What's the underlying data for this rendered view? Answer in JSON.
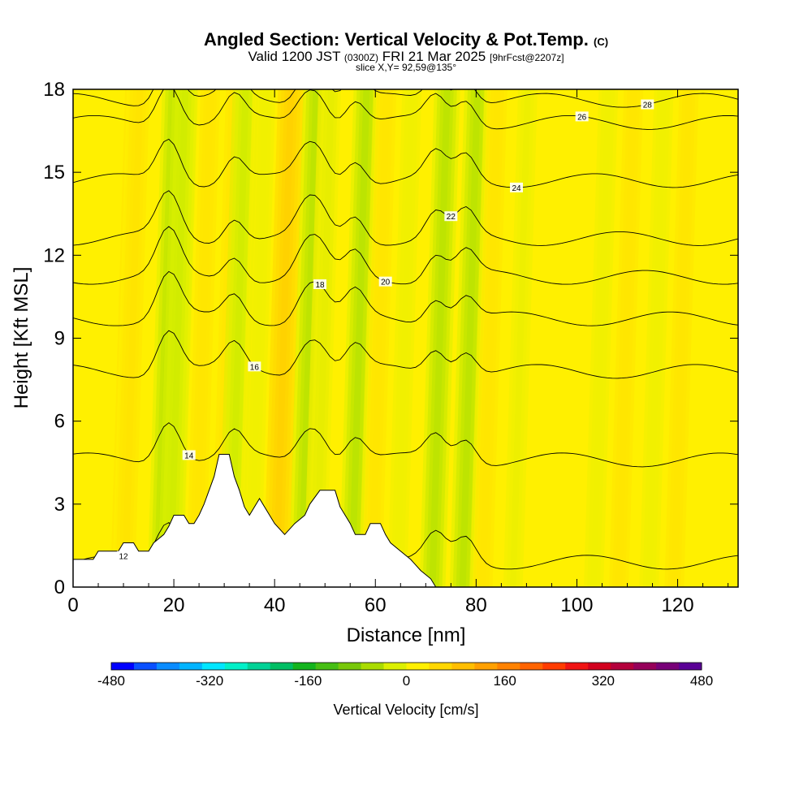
{
  "header": {
    "title": "Angled Section: Vertical Velocity & Pot.Temp.",
    "title_mark": "(C)",
    "valid_prefix": "Valid 1200 JST",
    "valid_utc": "(0300Z)",
    "valid_date": "FRI 21 Mar 2025",
    "forecast": "[9hrFcst@2207z]",
    "slice": "slice X,Y= 92,59@135°"
  },
  "chart_data": {
    "type": "heatmap",
    "xlabel": "Distance [nm]",
    "ylabel": "Height [Kft MSL]",
    "xlim": [
      0,
      132
    ],
    "ylim": [
      0,
      18
    ],
    "x_ticks": [
      0,
      20,
      40,
      60,
      80,
      100,
      120
    ],
    "y_ticks": [
      0,
      3,
      6,
      9,
      12,
      15,
      18
    ],
    "x_tick_labels": [
      "0",
      "20",
      "40",
      "60",
      "80",
      "100",
      "120"
    ],
    "y_tick_labels": [
      "0",
      "3",
      "6",
      "9",
      "12",
      "15",
      "18"
    ],
    "colorbar": {
      "title": "Vertical Velocity [cm/s]",
      "min": -480,
      "max": 480,
      "tick_values": [
        -480,
        -320,
        -160,
        0,
        160,
        320,
        480
      ],
      "tick_labels": [
        "-480",
        "-320",
        "-160",
        "0",
        "160",
        "320",
        "480"
      ],
      "colors": [
        "#0000ff",
        "#0a50ff",
        "#0a8cff",
        "#00b4ff",
        "#00e6ff",
        "#00f0c8",
        "#00d296",
        "#00be64",
        "#14b41e",
        "#46be14",
        "#78c80a",
        "#aadc00",
        "#dcf000",
        "#fff000",
        "#ffd700",
        "#ffbe00",
        "#ffa000",
        "#ff8200",
        "#ff6400",
        "#ff3c00",
        "#f01414",
        "#d2001e",
        "#b4003c",
        "#96005a",
        "#780078",
        "#5a0096"
      ]
    },
    "vertical_velocity_columns": [
      {
        "x": 10,
        "w": 0.5
      },
      {
        "x": 11,
        "w": 0.4
      },
      {
        "x": 18,
        "w": -1.1
      },
      {
        "x": 20,
        "w": -0.8
      },
      {
        "x": 25,
        "w": 0.3
      },
      {
        "x": 30,
        "w": 0.5
      },
      {
        "x": 32,
        "w": -0.7
      },
      {
        "x": 36,
        "w": -0.3
      },
      {
        "x": 41,
        "w": 0.8
      },
      {
        "x": 46,
        "w": -1.0
      },
      {
        "x": 49,
        "w": -0.6
      },
      {
        "x": 56,
        "w": -1.2
      },
      {
        "x": 60,
        "w": 0.3
      },
      {
        "x": 65,
        "w": -0.3
      },
      {
        "x": 72,
        "w": -0.9
      },
      {
        "x": 78,
        "w": -1.0
      },
      {
        "x": 82,
        "w": 0.3
      },
      {
        "x": 88,
        "w": -0.4
      },
      {
        "x": 104,
        "w": -0.3
      },
      {
        "x": 109,
        "w": 0.3
      },
      {
        "x": 115,
        "w": -0.3
      },
      {
        "x": 120,
        "w": 0.3
      }
    ],
    "terrain": [
      {
        "x": 0,
        "y": 1.0
      },
      {
        "x": 4,
        "y": 1.0
      },
      {
        "x": 5,
        "y": 1.3
      },
      {
        "x": 9,
        "y": 1.3
      },
      {
        "x": 10,
        "y": 1.6
      },
      {
        "x": 12,
        "y": 1.6
      },
      {
        "x": 13,
        "y": 1.3
      },
      {
        "x": 15,
        "y": 1.3
      },
      {
        "x": 16,
        "y": 1.6
      },
      {
        "x": 18,
        "y": 1.9
      },
      {
        "x": 19,
        "y": 2.2
      },
      {
        "x": 20,
        "y": 2.6
      },
      {
        "x": 22,
        "y": 2.6
      },
      {
        "x": 23,
        "y": 2.3
      },
      {
        "x": 24,
        "y": 2.3
      },
      {
        "x": 25,
        "y": 2.6
      },
      {
        "x": 26,
        "y": 3.0
      },
      {
        "x": 27,
        "y": 3.5
      },
      {
        "x": 28,
        "y": 4.0
      },
      {
        "x": 29,
        "y": 4.8
      },
      {
        "x": 31,
        "y": 4.8
      },
      {
        "x": 32,
        "y": 4.0
      },
      {
        "x": 33,
        "y": 3.5
      },
      {
        "x": 34,
        "y": 2.9
      },
      {
        "x": 35,
        "y": 2.6
      },
      {
        "x": 36,
        "y": 2.9
      },
      {
        "x": 37,
        "y": 3.2
      },
      {
        "x": 38,
        "y": 2.9
      },
      {
        "x": 39,
        "y": 2.6
      },
      {
        "x": 40,
        "y": 2.3
      },
      {
        "x": 42,
        "y": 1.9
      },
      {
        "x": 44,
        "y": 2.3
      },
      {
        "x": 46,
        "y": 2.6
      },
      {
        "x": 47,
        "y": 3.0
      },
      {
        "x": 49,
        "y": 3.5
      },
      {
        "x": 52,
        "y": 3.5
      },
      {
        "x": 53,
        "y": 2.9
      },
      {
        "x": 55,
        "y": 2.3
      },
      {
        "x": 56,
        "y": 1.9
      },
      {
        "x": 58,
        "y": 1.9
      },
      {
        "x": 59,
        "y": 2.3
      },
      {
        "x": 61,
        "y": 2.3
      },
      {
        "x": 62,
        "y": 1.9
      },
      {
        "x": 63,
        "y": 1.6
      },
      {
        "x": 65,
        "y": 1.3
      },
      {
        "x": 67,
        "y": 1.0
      },
      {
        "x": 69,
        "y": 0.6
      },
      {
        "x": 71,
        "y": 0.3
      },
      {
        "x": 72,
        "y": 0.0
      },
      {
        "x": 132,
        "y": 0.0
      }
    ],
    "theta_contours": [
      {
        "level": 12,
        "label": "12",
        "base": 0.9
      },
      {
        "level": 14,
        "label": "14",
        "base": 4.6
      },
      {
        "level": 16,
        "label": "16",
        "base": 7.8
      },
      {
        "level": 18,
        "label": "18",
        "base": 9.7
      },
      {
        "level": 20,
        "label": "20",
        "base": 11.2
      },
      {
        "level": 22,
        "label": "22",
        "base": 12.6
      },
      {
        "level": 24,
        "label": "24",
        "base": 14.7
      },
      {
        "level": 26,
        "label": "26",
        "base": 16.8
      },
      {
        "level": 28,
        "label": "28",
        "base": 17.6
      }
    ]
  }
}
